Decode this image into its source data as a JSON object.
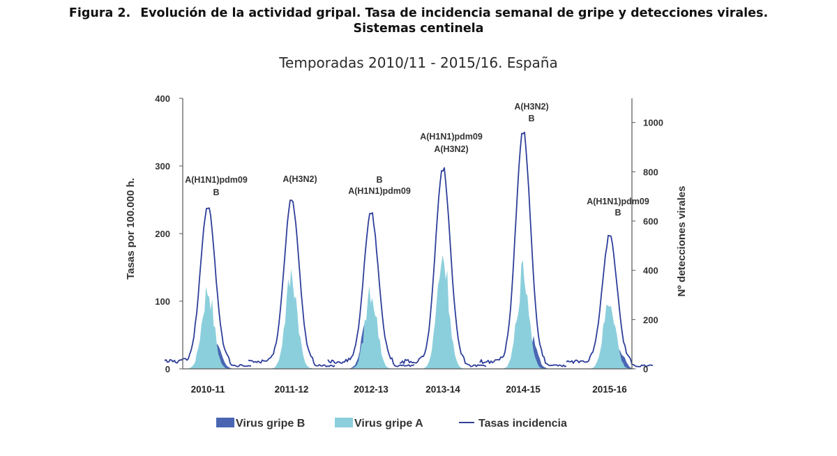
{
  "figure": {
    "label": "Figura 2.",
    "title_line1": "Evolución de la actividad gripal. Tasa de incidencia semanal de gripe y detecciones virales.",
    "title_line2": "Sistemas centinela",
    "subtitle": "Temporadas 2010/11 - 2015/16. España"
  },
  "colors": {
    "virus_b": "#4a66b3",
    "virus_a": "#8ccfdc",
    "tasas": "#2e3e9a",
    "axis": "#555555"
  },
  "chart_data": {
    "type": "area",
    "title": "",
    "ylabel": "Tasas por 100.000 h.",
    "y2label": "Nº detecciones virales",
    "ylim": [
      0,
      400
    ],
    "y2lim": [
      0,
      1100
    ],
    "yticks": [
      "0",
      "100",
      "200",
      "300",
      "400"
    ],
    "y2ticks": [
      "0",
      "200",
      "400",
      "600",
      "800",
      "1000"
    ],
    "grid": false,
    "legend_position": "bottom",
    "legend": [
      {
        "key": "virus_b",
        "label": "Virus gripe B",
        "kind": "area"
      },
      {
        "key": "virus_a",
        "label": "Virus gripe A",
        "kind": "area"
      },
      {
        "key": "tasas",
        "label": "Tasas incidencia",
        "kind": "line"
      }
    ],
    "seasons": [
      {
        "label": "2010-11",
        "annotation": [
          "A(H1N1)pdm09",
          "B"
        ],
        "tasas_peak": 240,
        "virus_a_peak": 350,
        "virus_b_peak": 110
      },
      {
        "label": "2011-12",
        "annotation": [
          "A(H3N2)"
        ],
        "tasas_peak": 250,
        "virus_a_peak": 410,
        "virus_b_peak": 25
      },
      {
        "label": "2012-13",
        "annotation": [
          "B",
          "A(H1N1)pdm09"
        ],
        "tasas_peak": 228,
        "virus_a_peak": 340,
        "virus_b_peak": 235
      },
      {
        "label": "2013-14",
        "annotation": [
          "A(H1N1)pdm09",
          "A(H3N2)"
        ],
        "tasas_peak": 295,
        "virus_a_peak": 500,
        "virus_b_peak": 5
      },
      {
        "label": "2014-15",
        "annotation": [
          "A(H3N2)",
          "B"
        ],
        "tasas_peak": 348,
        "virus_a_peak": 415,
        "virus_b_peak": 150
      },
      {
        "label": "2015-16",
        "annotation": [
          "A(H1N1)pdm09",
          "B"
        ],
        "tasas_peak": 195,
        "virus_a_peak": 295,
        "virus_b_peak": 110
      }
    ]
  }
}
